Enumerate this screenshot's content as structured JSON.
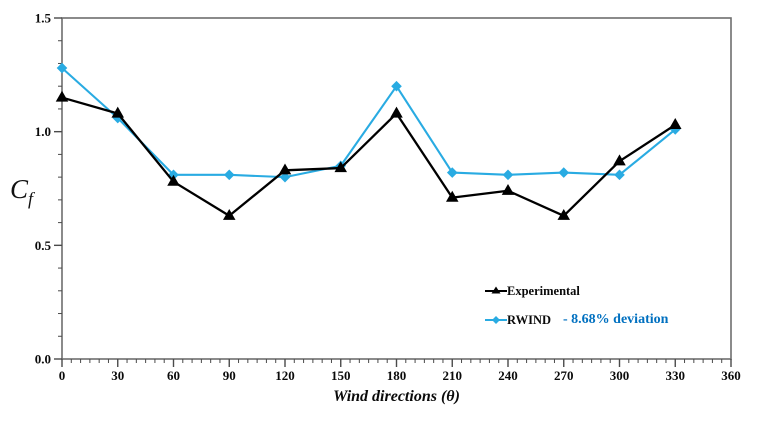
{
  "chart_data": {
    "type": "line",
    "x": [
      0,
      30,
      60,
      90,
      120,
      150,
      180,
      210,
      240,
      270,
      300,
      330
    ],
    "series": [
      {
        "name": "Experimental",
        "color": "#000000",
        "marker": "triangle",
        "values": [
          1.15,
          1.08,
          0.78,
          0.63,
          0.83,
          0.84,
          1.08,
          0.71,
          0.74,
          0.63,
          0.87,
          1.03
        ]
      },
      {
        "name": "RWIND",
        "color": "#29ABE2",
        "marker": "diamond",
        "values": [
          1.28,
          1.06,
          0.81,
          0.81,
          0.8,
          0.85,
          1.2,
          0.82,
          0.81,
          0.82,
          0.81,
          1.01
        ]
      }
    ],
    "title": "",
    "xlabel": "Wind directions (θ)",
    "ylabel": "Cf",
    "xlim": [
      0,
      360
    ],
    "ylim": [
      0,
      1.5
    ],
    "xticks": [
      0,
      30,
      60,
      90,
      120,
      150,
      180,
      210,
      240,
      270,
      300,
      330,
      360
    ],
    "xtick_labels": [
      "0",
      "30",
      "60",
      "90",
      "120",
      "150",
      "180",
      "210",
      "240",
      "270",
      "300",
      "330",
      "360"
    ],
    "yticks": [
      0.0,
      0.5,
      1.0,
      1.5
    ],
    "ytick_labels": [
      "0.0",
      "0.5",
      "1.0",
      "1.5"
    ],
    "x_minor_step": 5,
    "y_minor_step": 0.1,
    "grid": false,
    "legend_position": "inside-lower-right",
    "frame_color": "#6e6e6e",
    "tick_color": "#4a4a4a"
  },
  "axes": {
    "x_label": "Wind directions (θ)",
    "y_label_main": "C",
    "y_label_sub": "f"
  },
  "legend": {
    "experimental_label": "Experimental",
    "rwind_label": "RWIND",
    "deviation_label": "- 8.68% deviation",
    "deviation_color": "#0070C0"
  }
}
